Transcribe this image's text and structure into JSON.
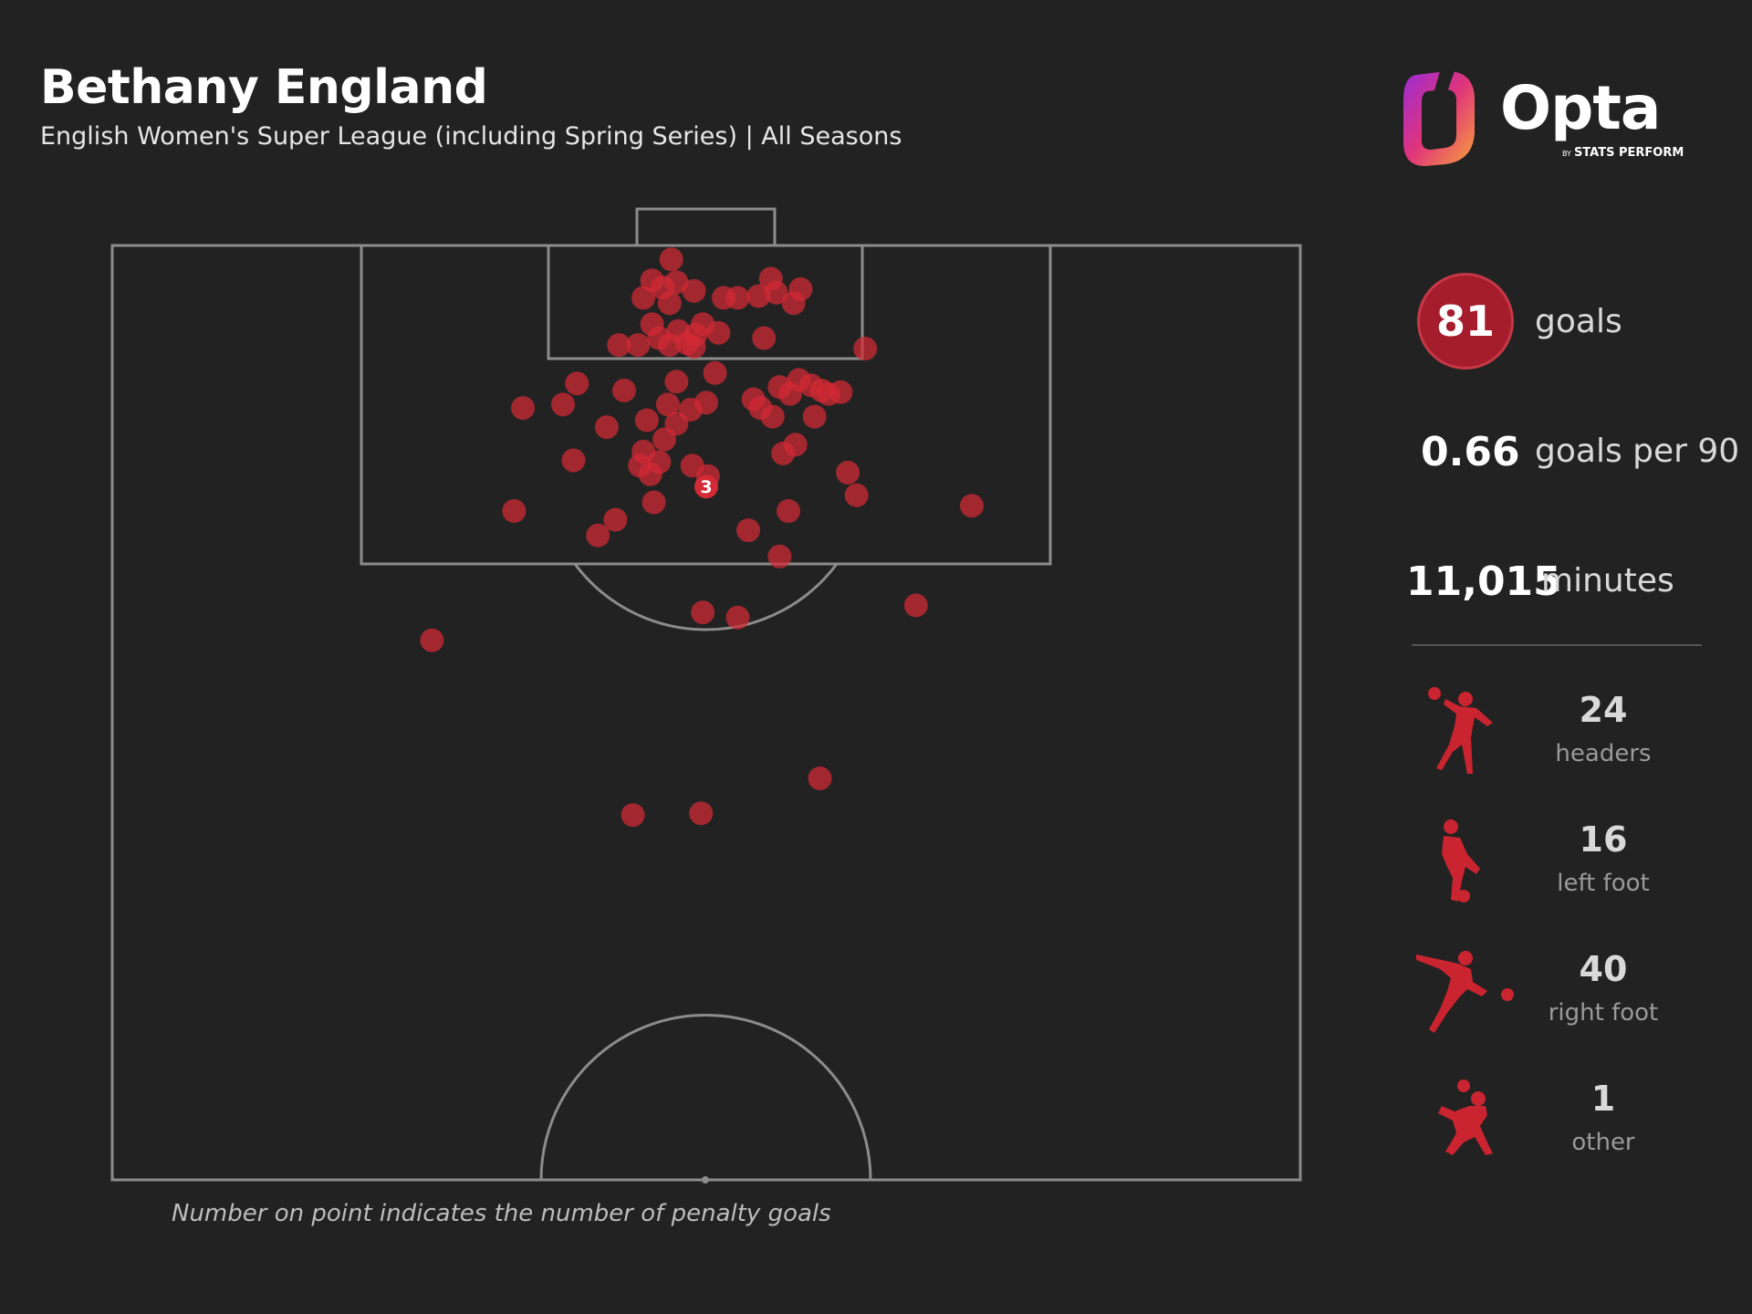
{
  "header": {
    "title": "Bethany England",
    "subtitle": "English Women's Super League (including Spring Series) | All Seasons"
  },
  "logo": {
    "wordmark": "Opta",
    "tag_prefix": "BY",
    "tag": "STATS PERFORM"
  },
  "stats": {
    "goals_value": "81",
    "goals_label": "goals",
    "per90_value": "0.66",
    "per90_label": "goals per 90",
    "minutes_value": "11,015",
    "minutes_label": "minutes"
  },
  "body_parts": [
    {
      "count": "24",
      "label": "headers",
      "icon": "header-player-icon"
    },
    {
      "count": "16",
      "label": "left foot",
      "icon": "left-foot-player-icon"
    },
    {
      "count": "40",
      "label": "right foot",
      "icon": "right-foot-player-icon"
    },
    {
      "count": "1",
      "label": "other",
      "icon": "other-player-icon"
    }
  ],
  "footnote": "Number on point indicates the number of penalty goals",
  "colors": {
    "background": "#222222",
    "goal_marker": "#d42a35",
    "pitch_lines": "#8c8c8c",
    "accent_circle": "#a51d2d"
  },
  "chart_data": {
    "type": "scatter",
    "description_units": "x = metres from left touchline (0-68), y = metres from goal line (0-52.5, half pitch)",
    "x_range": [
      0,
      68
    ],
    "y_range": [
      0,
      52.5
    ],
    "points": [
      {
        "x": 32.0,
        "y": 0.8
      },
      {
        "x": 30.9,
        "y": 2.0
      },
      {
        "x": 32.3,
        "y": 2.1
      },
      {
        "x": 31.5,
        "y": 2.4
      },
      {
        "x": 33.3,
        "y": 2.6
      },
      {
        "x": 30.4,
        "y": 3.0
      },
      {
        "x": 35.0,
        "y": 3.0
      },
      {
        "x": 31.9,
        "y": 3.3
      },
      {
        "x": 37.7,
        "y": 1.9
      },
      {
        "x": 38.0,
        "y": 2.7
      },
      {
        "x": 37.0,
        "y": 2.9
      },
      {
        "x": 39.4,
        "y": 2.5
      },
      {
        "x": 39.0,
        "y": 3.3
      },
      {
        "x": 35.8,
        "y": 3.0
      },
      {
        "x": 30.9,
        "y": 4.5
      },
      {
        "x": 33.8,
        "y": 4.5
      },
      {
        "x": 32.4,
        "y": 4.9
      },
      {
        "x": 31.3,
        "y": 5.3
      },
      {
        "x": 33.4,
        "y": 5.1
      },
      {
        "x": 32.9,
        "y": 5.6
      },
      {
        "x": 34.7,
        "y": 5.0
      },
      {
        "x": 37.3,
        "y": 5.3
      },
      {
        "x": 29.0,
        "y": 5.7
      },
      {
        "x": 30.1,
        "y": 5.7
      },
      {
        "x": 31.9,
        "y": 5.7
      },
      {
        "x": 33.3,
        "y": 5.8
      },
      {
        "x": 43.1,
        "y": 5.9
      },
      {
        "x": 34.5,
        "y": 7.3
      },
      {
        "x": 32.3,
        "y": 7.8
      },
      {
        "x": 26.6,
        "y": 7.9
      },
      {
        "x": 29.3,
        "y": 8.3
      },
      {
        "x": 38.2,
        "y": 8.1
      },
      {
        "x": 39.3,
        "y": 7.7
      },
      {
        "x": 38.8,
        "y": 8.5
      },
      {
        "x": 40.0,
        "y": 8.0
      },
      {
        "x": 40.6,
        "y": 8.3
      },
      {
        "x": 41.0,
        "y": 8.5
      },
      {
        "x": 41.7,
        "y": 8.4
      },
      {
        "x": 23.5,
        "y": 9.3
      },
      {
        "x": 25.8,
        "y": 9.1
      },
      {
        "x": 31.8,
        "y": 9.1
      },
      {
        "x": 33.1,
        "y": 9.4
      },
      {
        "x": 34.0,
        "y": 9.0
      },
      {
        "x": 36.7,
        "y": 8.8
      },
      {
        "x": 37.1,
        "y": 9.3
      },
      {
        "x": 37.8,
        "y": 9.8
      },
      {
        "x": 30.6,
        "y": 10.0
      },
      {
        "x": 32.3,
        "y": 10.2
      },
      {
        "x": 31.6,
        "y": 11.1
      },
      {
        "x": 28.3,
        "y": 10.4
      },
      {
        "x": 40.2,
        "y": 9.8
      },
      {
        "x": 30.4,
        "y": 11.8
      },
      {
        "x": 26.4,
        "y": 12.3
      },
      {
        "x": 30.2,
        "y": 12.6
      },
      {
        "x": 31.3,
        "y": 12.4
      },
      {
        "x": 38.4,
        "y": 11.9
      },
      {
        "x": 39.1,
        "y": 11.4
      },
      {
        "x": 30.8,
        "y": 13.1
      },
      {
        "x": 42.1,
        "y": 13.0
      },
      {
        "x": 42.6,
        "y": 14.3
      },
      {
        "x": 33.2,
        "y": 12.6
      },
      {
        "x": 34.1,
        "y": 13.2
      },
      {
        "x": 34.0,
        "y": 13.8,
        "penalties": 3
      },
      {
        "x": 31.0,
        "y": 14.7
      },
      {
        "x": 23.0,
        "y": 15.2
      },
      {
        "x": 28.8,
        "y": 15.7
      },
      {
        "x": 27.8,
        "y": 16.6
      },
      {
        "x": 36.4,
        "y": 16.3
      },
      {
        "x": 38.7,
        "y": 15.2
      },
      {
        "x": 49.2,
        "y": 14.9
      },
      {
        "x": 38.2,
        "y": 17.8
      },
      {
        "x": 33.8,
        "y": 21.0
      },
      {
        "x": 35.8,
        "y": 21.3
      },
      {
        "x": 46.0,
        "y": 20.6
      },
      {
        "x": 18.3,
        "y": 22.6
      },
      {
        "x": 29.8,
        "y": 32.6
      },
      {
        "x": 33.7,
        "y": 32.5
      },
      {
        "x": 40.5,
        "y": 30.5
      }
    ]
  }
}
